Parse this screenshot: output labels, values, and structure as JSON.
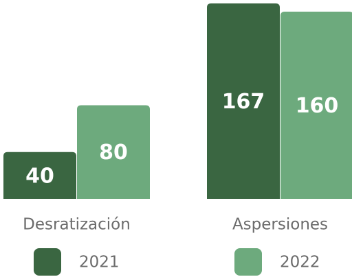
{
  "chart_data": {
    "type": "bar",
    "categories": [
      "Desratización",
      "Aspersiones"
    ],
    "series": [
      {
        "name": "2021",
        "color": "#3a6641",
        "values": [
          40,
          167
        ]
      },
      {
        "name": "2022",
        "color": "#6daa7d",
        "values": [
          80,
          160
        ]
      }
    ]
  }
}
